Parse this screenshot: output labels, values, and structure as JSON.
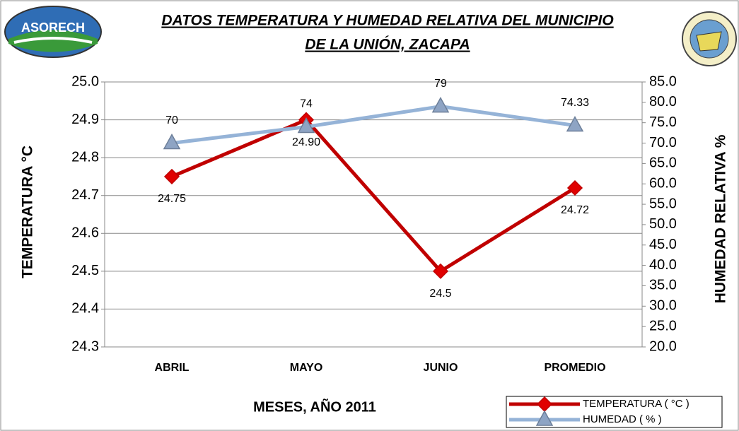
{
  "chart_data": {
    "type": "line",
    "title": [
      "DATOS  TEMPERATURA Y HUMEDAD RELATIVA  DEL  MUNICIPIO",
      "DE  LA  UNIÓN, ZACAPA"
    ],
    "logo_text": "ASORECH",
    "x_label": "MESES, AÑO 2011",
    "y_label": "TEMPERATURA °C",
    "y2_label": "HUMEDAD RELATIVA %",
    "categories": [
      "ABRIL",
      "MAYO",
      "JUNIO",
      "PROMEDIO"
    ],
    "series": [
      {
        "name": "TEMPERATURA ( °C )",
        "color": "#c00000",
        "marker": "diamond",
        "values": [
          24.75,
          24.9,
          24.5,
          24.72
        ],
        "value_labels": [
          "24.75",
          "24.90",
          "24.5",
          "24.72"
        ]
      },
      {
        "name": "HUMEDAD ( % )",
        "color": "#95b3d7",
        "marker": "triangle",
        "axis": "y2",
        "values": [
          70,
          74,
          79,
          74.33
        ]
      }
    ],
    "ylim": [
      24.3,
      25.0
    ],
    "yticks": [
      24.3,
      24.4,
      24.5,
      24.6,
      24.7,
      24.8,
      24.9,
      {
        "value": 25.0,
        "label": "25.0"
      }
    ],
    "y2lim": [
      20,
      85
    ],
    "y2ticks": [
      {
        "value": 20,
        "label": "20.0"
      },
      {
        "value": 25,
        "label": "25.0"
      },
      {
        "value": 30,
        "label": "30.0"
      },
      {
        "value": 35,
        "label": "35.0"
      },
      {
        "value": 40,
        "label": "40.0"
      },
      {
        "value": 45,
        "label": "45.0"
      },
      {
        "value": 50,
        "label": "50.0"
      },
      {
        "value": 55,
        "label": "55.0"
      },
      {
        "value": 60,
        "label": "60.0"
      },
      {
        "value": 65,
        "label": "65.0"
      },
      {
        "value": 70,
        "label": "70.0"
      },
      {
        "value": 75,
        "label": "75.0"
      },
      {
        "value": 80,
        "label": "80.0"
      },
      {
        "value": 85,
        "label": "85.0"
      }
    ],
    "grid": true,
    "legend": "bottom-right"
  }
}
